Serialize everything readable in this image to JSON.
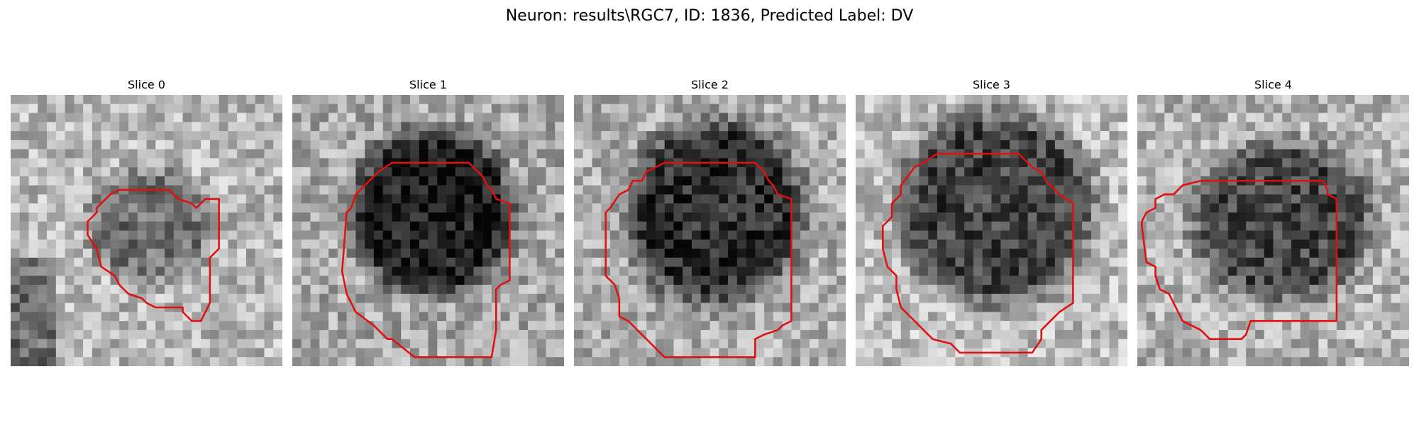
{
  "figure": {
    "title": "Neuron: results\\RGC7, ID: 1836, Predicted Label: DV"
  },
  "panels": [
    {
      "title": "Slice 0"
    },
    {
      "title": "Slice 1"
    },
    {
      "title": "Slice 2"
    },
    {
      "title": "Slice 3"
    },
    {
      "title": "Slice 4"
    }
  ],
  "colors": {
    "contour": "#e01010",
    "background": "#ffffff"
  }
}
